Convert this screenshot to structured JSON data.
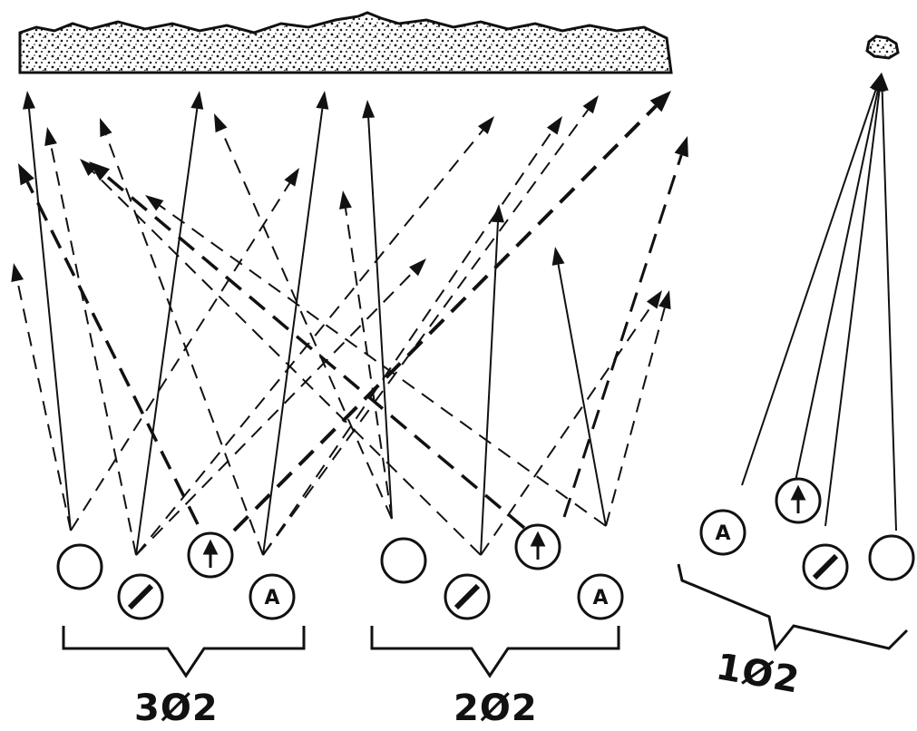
{
  "groups": [
    {
      "id": "group-3o2",
      "label": "3Ø2",
      "markers": [
        {
          "type": "plain"
        },
        {
          "type": "slash"
        },
        {
          "type": "arrow"
        },
        {
          "type": "letter",
          "text": "A"
        }
      ]
    },
    {
      "id": "group-2o2",
      "label": "2Ø2",
      "markers": [
        {
          "type": "plain"
        },
        {
          "type": "slash"
        },
        {
          "type": "arrow"
        },
        {
          "type": "letter",
          "text": "A"
        }
      ]
    },
    {
      "id": "group-1o2",
      "label": "1Ø2",
      "markers": [
        {
          "type": "letter",
          "text": "A"
        },
        {
          "type": "arrow"
        },
        {
          "type": "slash"
        },
        {
          "type": "plain"
        }
      ]
    }
  ],
  "colors": {
    "ink": "#111111",
    "background": "#ffffff"
  }
}
